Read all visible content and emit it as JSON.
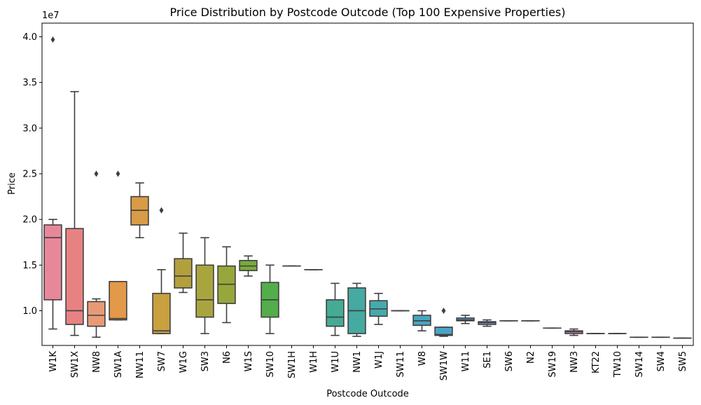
{
  "chart_data": {
    "type": "box",
    "title": "Price Distribution by Postcode Outcode (Top 100 Expensive Properties)",
    "xlabel": "Postcode Outcode",
    "ylabel": "Price",
    "y_offset_label": "1e7",
    "ylim": [
      6200000,
      41500000
    ],
    "yticks": [
      10000000,
      15000000,
      20000000,
      25000000,
      30000000,
      35000000,
      40000000
    ],
    "ytick_labels": [
      "1.0",
      "1.5",
      "2.0",
      "2.5",
      "3.0",
      "3.5",
      "4.0"
    ],
    "grid": false,
    "categories": [
      {
        "name": "W1K",
        "color": "#e8879a",
        "min": 8000000,
        "q1": 11200000,
        "median": 18000000,
        "q3": 19400000,
        "max": 20000000,
        "outliers": [
          39700000
        ]
      },
      {
        "name": "SW1X",
        "color": "#e88282",
        "min": 7300000,
        "q1": 8500000,
        "median": 10000000,
        "q3": 19000000,
        "max": 34000000,
        "outliers": []
      },
      {
        "name": "NW8",
        "color": "#e89a76",
        "min": 7100000,
        "q1": 8300000,
        "median": 9500000,
        "q3": 11000000,
        "max": 11300000,
        "outliers": [
          25000000
        ]
      },
      {
        "name": "SW1A",
        "color": "#e2994a",
        "min": 9000000,
        "q1": 9000000,
        "median": 9150000,
        "q3": 13200000,
        "max": 13200000,
        "outliers": [
          25000000
        ]
      },
      {
        "name": "NW11",
        "color": "#d99b45",
        "min": 18000000,
        "q1": 19400000,
        "median": 21000000,
        "q3": 22500000,
        "max": 24000000,
        "outliers": []
      },
      {
        "name": "SW7",
        "color": "#c8a040",
        "min": 7500000,
        "q1": 7500000,
        "median": 7800000,
        "q3": 11900000,
        "max": 14500000,
        "outliers": [
          21000000
        ]
      },
      {
        "name": "W1G",
        "color": "#b2a03c",
        "min": 12000000,
        "q1": 12500000,
        "median": 13800000,
        "q3": 15700000,
        "max": 18500000,
        "outliers": []
      },
      {
        "name": "SW3",
        "color": "#a9a53e",
        "min": 7500000,
        "q1": 9300000,
        "median": 11200000,
        "q3": 15000000,
        "max": 18000000,
        "outliers": []
      },
      {
        "name": "N6",
        "color": "#98a73c",
        "min": 8700000,
        "q1": 10800000,
        "median": 12900000,
        "q3": 14900000,
        "max": 17000000,
        "outliers": []
      },
      {
        "name": "W1S",
        "color": "#7aab3e",
        "min": 13800000,
        "q1": 14400000,
        "median": 14900000,
        "q3": 15500000,
        "max": 16000000,
        "outliers": []
      },
      {
        "name": "SW10",
        "color": "#53ad4a",
        "min": 7500000,
        "q1": 9300000,
        "median": 11200000,
        "q3": 13100000,
        "max": 15000000,
        "outliers": []
      },
      {
        "name": "SW1H",
        "color": "#4cac6e",
        "min": 14900000,
        "q1": 14900000,
        "median": 14900000,
        "q3": 14900000,
        "max": 14900000,
        "outliers": []
      },
      {
        "name": "W1H",
        "color": "#48ac84",
        "min": 14500000,
        "q1": 14500000,
        "median": 14500000,
        "q3": 14500000,
        "max": 14500000,
        "outliers": []
      },
      {
        "name": "W1U",
        "color": "#45ab95",
        "min": 7300000,
        "q1": 8300000,
        "median": 9300000,
        "q3": 11200000,
        "max": 13000000,
        "outliers": []
      },
      {
        "name": "NW1",
        "color": "#45aaa1",
        "min": 7200000,
        "q1": 7500000,
        "median": 10000000,
        "q3": 12500000,
        "max": 13000000,
        "outliers": []
      },
      {
        "name": "W1J",
        "color": "#46aaac",
        "min": 8500000,
        "q1": 9400000,
        "median": 10200000,
        "q3": 11100000,
        "max": 11900000,
        "outliers": []
      },
      {
        "name": "SW11",
        "color": "#47a8b6",
        "min": 10000000,
        "q1": 10000000,
        "median": 10000000,
        "q3": 10000000,
        "max": 10000000,
        "outliers": []
      },
      {
        "name": "W8",
        "color": "#48a6bf",
        "min": 7800000,
        "q1": 8400000,
        "median": 8900000,
        "q3": 9500000,
        "max": 10000000,
        "outliers": []
      },
      {
        "name": "SW1W",
        "color": "#4aa3c9",
        "min": 7200000,
        "q1": 7300000,
        "median": 7400000,
        "q3": 8200000,
        "max": 8200000,
        "outliers": [
          10000000
        ]
      },
      {
        "name": "W11",
        "color": "#5da0d6",
        "min": 8600000,
        "q1": 8900000,
        "median": 9000000,
        "q3": 9200000,
        "max": 9500000,
        "outliers": []
      },
      {
        "name": "SE1",
        "color": "#7d9ce0",
        "min": 8300000,
        "q1": 8500000,
        "median": 8700000,
        "q3": 8800000,
        "max": 9000000,
        "outliers": []
      },
      {
        "name": "SW6",
        "color": "#9a97e2",
        "min": 8900000,
        "q1": 8900000,
        "median": 8900000,
        "q3": 8900000,
        "max": 8900000,
        "outliers": []
      },
      {
        "name": "N2",
        "color": "#b28fe0",
        "min": 8900000,
        "q1": 8900000,
        "median": 8900000,
        "q3": 8900000,
        "max": 8900000,
        "outliers": []
      },
      {
        "name": "SW19",
        "color": "#c488d9",
        "min": 8100000,
        "q1": 8100000,
        "median": 8100000,
        "q3": 8100000,
        "max": 8100000,
        "outliers": []
      },
      {
        "name": "NW3",
        "color": "#d082d2",
        "min": 7300000,
        "q1": 7500000,
        "median": 7700000,
        "q3": 7800000,
        "max": 8000000,
        "outliers": []
      },
      {
        "name": "KT22",
        "color": "#dc80c4",
        "min": 7500000,
        "q1": 7500000,
        "median": 7500000,
        "q3": 7500000,
        "max": 7500000,
        "outliers": []
      },
      {
        "name": "TW10",
        "color": "#e27fb8",
        "min": 7500000,
        "q1": 7500000,
        "median": 7500000,
        "q3": 7500000,
        "max": 7500000,
        "outliers": []
      },
      {
        "name": "SW14",
        "color": "#e67fae",
        "min": 7100000,
        "q1": 7100000,
        "median": 7100000,
        "q3": 7100000,
        "max": 7100000,
        "outliers": []
      },
      {
        "name": "SW4",
        "color": "#e881a6",
        "min": 7100000,
        "q1": 7100000,
        "median": 7100000,
        "q3": 7100000,
        "max": 7100000,
        "outliers": []
      },
      {
        "name": "SW5",
        "color": "#e9839f",
        "min": 7000000,
        "q1": 7000000,
        "median": 7000000,
        "q3": 7000000,
        "max": 7000000,
        "outliers": []
      }
    ]
  }
}
